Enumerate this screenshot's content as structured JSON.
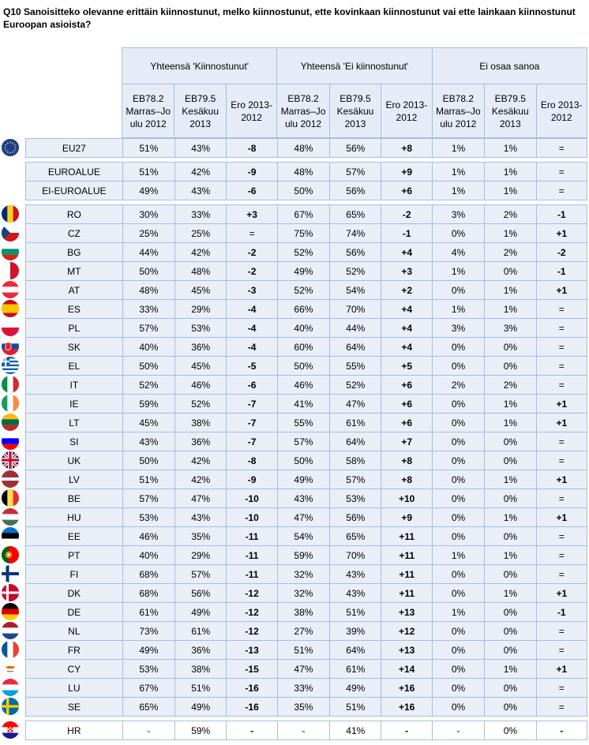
{
  "question": "Q10 Sanoisitteko olevanne erittäin kiinnostunut, melko kiinnostunut, ette kovinkaan kiinnostunut vai ette lainkaan kiinnostunut Euroopan asioista?",
  "groups": [
    {
      "label": "Yhteensä 'Kiinnostunut'"
    },
    {
      "label": "Yhteensä 'Ei kiinnostunut'"
    },
    {
      "label": "Ei osaa sanoa"
    }
  ],
  "subheaders": [
    "EB78.2 Marras–Jo ulu 2012",
    "EB79.5 Kesäkuu 2013",
    "Ero 2013-2012",
    "EB78.2 Marras–Jo ulu 2012",
    "EB79.5 Kesäkuu 2013",
    "Ero 2013-2012",
    "EB78.2 Marras–Jo ulu 2012",
    "EB79.5 Kesäkuu 2013",
    "Ero 2013-2012"
  ],
  "eu": [
    {
      "name": "EU27",
      "flag": "eu-flag",
      "v": [
        "51%",
        "43%",
        "-8",
        "48%",
        "56%",
        "+8",
        "1%",
        "1%",
        "="
      ]
    }
  ],
  "zones": [
    {
      "name": "EUROALUE",
      "v": [
        "51%",
        "42%",
        "-9",
        "48%",
        "57%",
        "+9",
        "1%",
        "1%",
        "="
      ]
    },
    {
      "name": "EI-EUROALUE",
      "v": [
        "49%",
        "43%",
        "-6",
        "50%",
        "56%",
        "+6",
        "1%",
        "1%",
        "="
      ]
    }
  ],
  "countries": [
    {
      "name": "RO",
      "flag": "ro-flag",
      "v": [
        "30%",
        "33%",
        "+3",
        "67%",
        "65%",
        "-2",
        "3%",
        "2%",
        "-1"
      ]
    },
    {
      "name": "CZ",
      "flag": "cz-flag",
      "v": [
        "25%",
        "25%",
        "=",
        "75%",
        "74%",
        "-1",
        "0%",
        "1%",
        "+1"
      ]
    },
    {
      "name": "BG",
      "flag": "bg-flag",
      "v": [
        "44%",
        "42%",
        "-2",
        "52%",
        "56%",
        "+4",
        "4%",
        "2%",
        "-2"
      ]
    },
    {
      "name": "MT",
      "flag": "mt-flag",
      "v": [
        "50%",
        "48%",
        "-2",
        "49%",
        "52%",
        "+3",
        "1%",
        "0%",
        "-1"
      ]
    },
    {
      "name": "AT",
      "flag": "at-flag",
      "v": [
        "48%",
        "45%",
        "-3",
        "52%",
        "54%",
        "+2",
        "0%",
        "1%",
        "+1"
      ]
    },
    {
      "name": "ES",
      "flag": "es-flag",
      "v": [
        "33%",
        "29%",
        "-4",
        "66%",
        "70%",
        "+4",
        "1%",
        "1%",
        "="
      ]
    },
    {
      "name": "PL",
      "flag": "pl-flag",
      "v": [
        "57%",
        "53%",
        "-4",
        "40%",
        "44%",
        "+4",
        "3%",
        "3%",
        "="
      ]
    },
    {
      "name": "SK",
      "flag": "sk-flag",
      "v": [
        "40%",
        "36%",
        "-4",
        "60%",
        "64%",
        "+4",
        "0%",
        "0%",
        "="
      ]
    },
    {
      "name": "EL",
      "flag": "el-flag",
      "v": [
        "50%",
        "45%",
        "-5",
        "50%",
        "55%",
        "+5",
        "0%",
        "0%",
        "="
      ]
    },
    {
      "name": "IT",
      "flag": "it-flag",
      "v": [
        "52%",
        "46%",
        "-6",
        "46%",
        "52%",
        "+6",
        "2%",
        "2%",
        "="
      ]
    },
    {
      "name": "IE",
      "flag": "ie-flag",
      "v": [
        "59%",
        "52%",
        "-7",
        "41%",
        "47%",
        "+6",
        "0%",
        "1%",
        "+1"
      ]
    },
    {
      "name": "LT",
      "flag": "lt-flag",
      "v": [
        "45%",
        "38%",
        "-7",
        "55%",
        "61%",
        "+6",
        "0%",
        "1%",
        "+1"
      ]
    },
    {
      "name": "SI",
      "flag": "si-flag",
      "v": [
        "43%",
        "36%",
        "-7",
        "57%",
        "64%",
        "+7",
        "0%",
        "0%",
        "="
      ]
    },
    {
      "name": "UK",
      "flag": "uk-flag",
      "v": [
        "50%",
        "42%",
        "-8",
        "50%",
        "58%",
        "+8",
        "0%",
        "0%",
        "="
      ]
    },
    {
      "name": "LV",
      "flag": "lv-flag",
      "v": [
        "51%",
        "42%",
        "-9",
        "49%",
        "57%",
        "+8",
        "0%",
        "1%",
        "+1"
      ]
    },
    {
      "name": "BE",
      "flag": "be-flag",
      "v": [
        "57%",
        "47%",
        "-10",
        "43%",
        "53%",
        "+10",
        "0%",
        "0%",
        "="
      ]
    },
    {
      "name": "HU",
      "flag": "hu-flag",
      "v": [
        "53%",
        "43%",
        "-10",
        "47%",
        "56%",
        "+9",
        "0%",
        "1%",
        "+1"
      ]
    },
    {
      "name": "EE",
      "flag": "ee-flag",
      "v": [
        "46%",
        "35%",
        "-11",
        "54%",
        "65%",
        "+11",
        "0%",
        "0%",
        "="
      ]
    },
    {
      "name": "PT",
      "flag": "pt-flag",
      "v": [
        "40%",
        "29%",
        "-11",
        "59%",
        "70%",
        "+11",
        "1%",
        "1%",
        "="
      ]
    },
    {
      "name": "FI",
      "flag": "fi-flag",
      "v": [
        "68%",
        "57%",
        "-11",
        "32%",
        "43%",
        "+11",
        "0%",
        "0%",
        "="
      ]
    },
    {
      "name": "DK",
      "flag": "dk-flag",
      "v": [
        "68%",
        "56%",
        "-12",
        "32%",
        "43%",
        "+11",
        "0%",
        "1%",
        "+1"
      ]
    },
    {
      "name": "DE",
      "flag": "de-flag",
      "v": [
        "61%",
        "49%",
        "-12",
        "38%",
        "51%",
        "+13",
        "1%",
        "0%",
        "-1"
      ]
    },
    {
      "name": "NL",
      "flag": "nl-flag",
      "v": [
        "73%",
        "61%",
        "-12",
        "27%",
        "39%",
        "+12",
        "0%",
        "0%",
        "="
      ]
    },
    {
      "name": "FR",
      "flag": "fr-flag",
      "v": [
        "49%",
        "36%",
        "-13",
        "51%",
        "64%",
        "+13",
        "0%",
        "0%",
        "="
      ]
    },
    {
      "name": "CY",
      "flag": "cy-flag",
      "v": [
        "53%",
        "38%",
        "-15",
        "47%",
        "61%",
        "+14",
        "0%",
        "1%",
        "+1"
      ]
    },
    {
      "name": "LU",
      "flag": "lu-flag",
      "v": [
        "67%",
        "51%",
        "-16",
        "33%",
        "49%",
        "+16",
        "0%",
        "0%",
        "="
      ]
    },
    {
      "name": "SE",
      "flag": "se-flag",
      "v": [
        "65%",
        "49%",
        "-16",
        "35%",
        "51%",
        "+16",
        "0%",
        "0%",
        "="
      ]
    }
  ],
  "candidates": [
    {
      "name": "HR",
      "flag": "hr-flag",
      "v": [
        "-",
        "59%",
        "-",
        "-",
        "41%",
        "-",
        "-",
        "0%",
        "-"
      ]
    }
  ]
}
